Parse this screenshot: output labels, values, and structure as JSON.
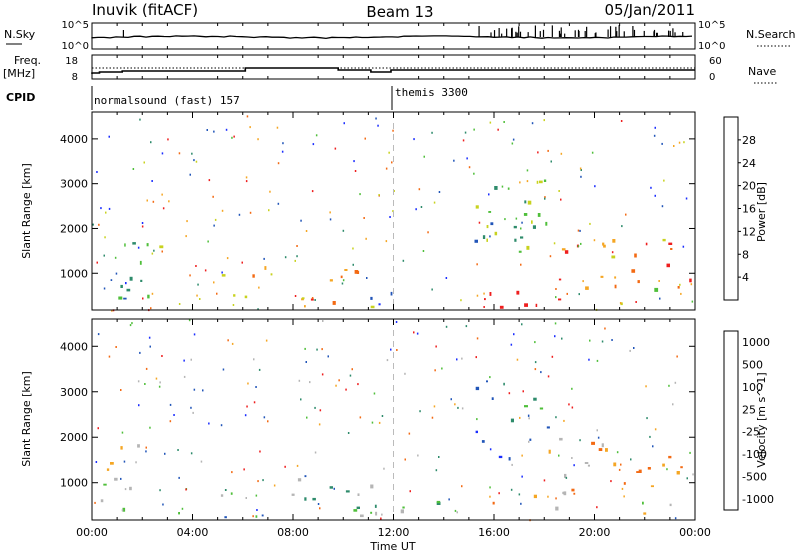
{
  "header": {
    "station": "Inuvik (fitACF)",
    "beam": "Beam 13",
    "date": "05/Jan/2011"
  },
  "status_panels": {
    "nsky_label": "N.Sky",
    "nsearch_label": "N.Search",
    "nsky_ticks": [
      "10^5",
      "10^0"
    ],
    "nsearch_ticks": [
      "10^5",
      "10^0"
    ],
    "freq_label": "Freq.",
    "freq_unit": "[MHz]",
    "freq_ticks": [
      "18",
      "8"
    ],
    "nave_label": "Nave",
    "nave_ticks": [
      "60",
      "0"
    ],
    "cpid_label": "CPID",
    "cpid_segments": [
      {
        "label": "normalsound (fast) 157",
        "start_hour": 0
      },
      {
        "label": "themis 3300",
        "start_hour": 12
      }
    ]
  },
  "chart_data": [
    {
      "type": "heatmap",
      "title": "",
      "ylabel": "Slant Range [km]",
      "xlabel": "",
      "xlim": [
        0,
        24
      ],
      "ylim": [
        180,
        4600
      ],
      "yticks": [
        1000,
        2000,
        3000,
        4000
      ],
      "colorbar": {
        "label": "Power [dB]",
        "ticks": [
          "4",
          "8",
          "12",
          "16",
          "20",
          "24",
          "28"
        ],
        "colors": [
          "#1a2dff",
          "#2155b8",
          "#2e8b6b",
          "#4fbf3a",
          "#c8d21e",
          "#f5a623",
          "#f36a13",
          "#ee1e1e"
        ]
      },
      "echo_regions": [
        {
          "t0": 0.1,
          "t1": 2.7,
          "r0": 1050,
          "r1": 1850,
          "level": 0.55
        },
        {
          "t0": 0.2,
          "t1": 5.5,
          "r0": 350,
          "r1": 1000,
          "level": 0.3
        },
        {
          "t0": 5.0,
          "t1": 11.5,
          "r0": 250,
          "r1": 1200,
          "level": 0.7
        },
        {
          "t0": 11.0,
          "t1": 15.0,
          "r0": 250,
          "r1": 600,
          "level": 0.2
        },
        {
          "t0": 15.0,
          "t1": 19.5,
          "r0": 250,
          "r1": 900,
          "level": 0.95
        },
        {
          "t0": 15.0,
          "t1": 18.5,
          "r0": 1500,
          "r1": 3300,
          "level": 0.4
        },
        {
          "t0": 18.0,
          "t1": 23.9,
          "r0": 700,
          "r1": 2000,
          "level": 0.75
        },
        {
          "t0": 21.0,
          "t1": 23.0,
          "r0": 250,
          "r1": 700,
          "level": 0.5
        }
      ]
    },
    {
      "type": "heatmap",
      "title": "",
      "ylabel": "Slant Range [km]",
      "xlabel": "Time UT",
      "xlim": [
        0,
        24
      ],
      "ylim": [
        180,
        4600
      ],
      "xticks": [
        "00:00",
        "04:00",
        "08:00",
        "12:00",
        "16:00",
        "20:00",
        "00:00"
      ],
      "yticks": [
        1000,
        2000,
        3000,
        4000
      ],
      "colorbar": {
        "label": "Velocity [m s^-1]",
        "ticks": [
          "1000",
          "500",
          "100",
          "25",
          "-25",
          "-100",
          "-500",
          "-1000"
        ],
        "colors": [
          "#1a2dff",
          "#2155b8",
          "#2e8b6b",
          "#4fbf3a",
          "#b5b5b5",
          "#f5a623",
          "#f36a13",
          "#ee1e1e"
        ]
      },
      "echo_regions": [
        {
          "t0": 0.1,
          "t1": 2.7,
          "r0": 1050,
          "r1": 1850,
          "level": 0.75
        },
        {
          "t0": 0.2,
          "t1": 5.5,
          "r0": 350,
          "r1": 1000,
          "level": 0.45
        },
        {
          "t0": 5.0,
          "t1": 11.5,
          "r0": 250,
          "r1": 1200,
          "level": 0.4
        },
        {
          "t0": 11.0,
          "t1": 15.0,
          "r0": 250,
          "r1": 600,
          "level": 0.4
        },
        {
          "t0": 15.0,
          "t1": 19.5,
          "r0": 250,
          "r1": 900,
          "level": 0.7
        },
        {
          "t0": 15.0,
          "t1": 18.5,
          "r0": 1500,
          "r1": 3300,
          "level": 0.3
        },
        {
          "t0": 18.0,
          "t1": 23.9,
          "r0": 700,
          "r1": 2000,
          "level": 0.72
        },
        {
          "t0": 21.0,
          "t1": 23.0,
          "r0": 250,
          "r1": 700,
          "level": 0.6
        }
      ]
    }
  ]
}
